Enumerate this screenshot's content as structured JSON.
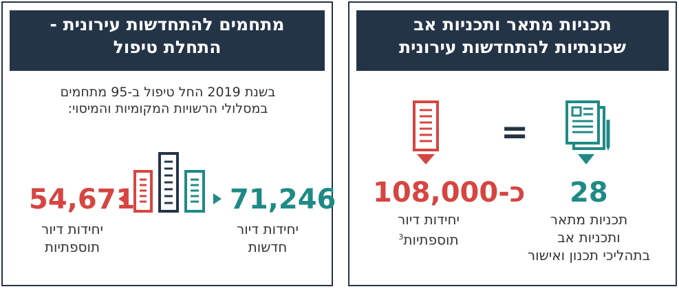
{
  "left_panel": {
    "title_line1": "מתחמים להתחדשות עירונית -",
    "title_line2": "התחלת טיפול",
    "intro_line1": "בשנת 2019 החל טיפול ב-95 מתחמים",
    "intro_line2": "במסלולי הרשויות המקומיות והמיסוי:",
    "stat_new": {
      "value": "71,246",
      "label_line1": "יחידות דיור",
      "label_line2": "חדשות"
    },
    "stat_additional": {
      "value": "54,671",
      "label_line1": "יחידות דיור",
      "label_line2": "תוספתיות"
    }
  },
  "right_panel": {
    "title_line1": "תכניות מתאר ותכניות אב",
    "title_line2": "שכונתיות להתחדשות עירונית",
    "stat_plans": {
      "value": "28",
      "label_line1": "תכניות מתאר",
      "label_line2": "ותכניות אב",
      "label_line3": "בתהליכי תכנון ואישור"
    },
    "stat_units": {
      "value": "כ-108,000",
      "label_line1": "יחידות דיור",
      "label_line2": "תוספתיות",
      "footnote": "3"
    },
    "equals_sign": "="
  },
  "colors": {
    "navy": "#243447",
    "teal": "#1f8a85",
    "red": "#d64541"
  },
  "icons": [
    "buildings-icon",
    "arrow-left-icon",
    "arrow-right-icon",
    "plans-document-icon",
    "list-document-icon"
  ]
}
